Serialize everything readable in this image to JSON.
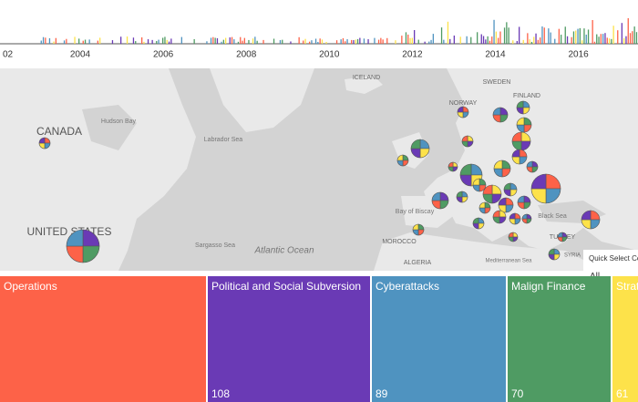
{
  "timeline": {
    "years": [
      "02",
      "2004",
      "2006",
      "2008",
      "2010",
      "2012",
      "2014",
      "2016"
    ]
  },
  "map": {
    "labels": [
      "CANADA",
      "UNITED STATES",
      "Hudson Bay",
      "Labrador Sea",
      "ICELAND",
      "SWEDEN",
      "NORWAY",
      "FINLAND",
      "Bay of Biscay",
      "Black Sea",
      "TURKEY",
      "MOROCCO",
      "ALGERIA",
      "Mediterranean Sea",
      "Sargasso Sea",
      "Atlantic Ocean",
      "SYRIA"
    ]
  },
  "quick_select": {
    "title": "Quick Select Cou",
    "value": "All"
  },
  "treemap": {
    "tiles": [
      {
        "name": "Operations"
      },
      {
        "name": "Political and Social Subversion",
        "value": "108"
      },
      {
        "name": "Cyberattacks",
        "value": "89"
      },
      {
        "name": "Malign Finance",
        "value": "70"
      },
      {
        "name": "Strat",
        "value": "61"
      }
    ]
  }
}
